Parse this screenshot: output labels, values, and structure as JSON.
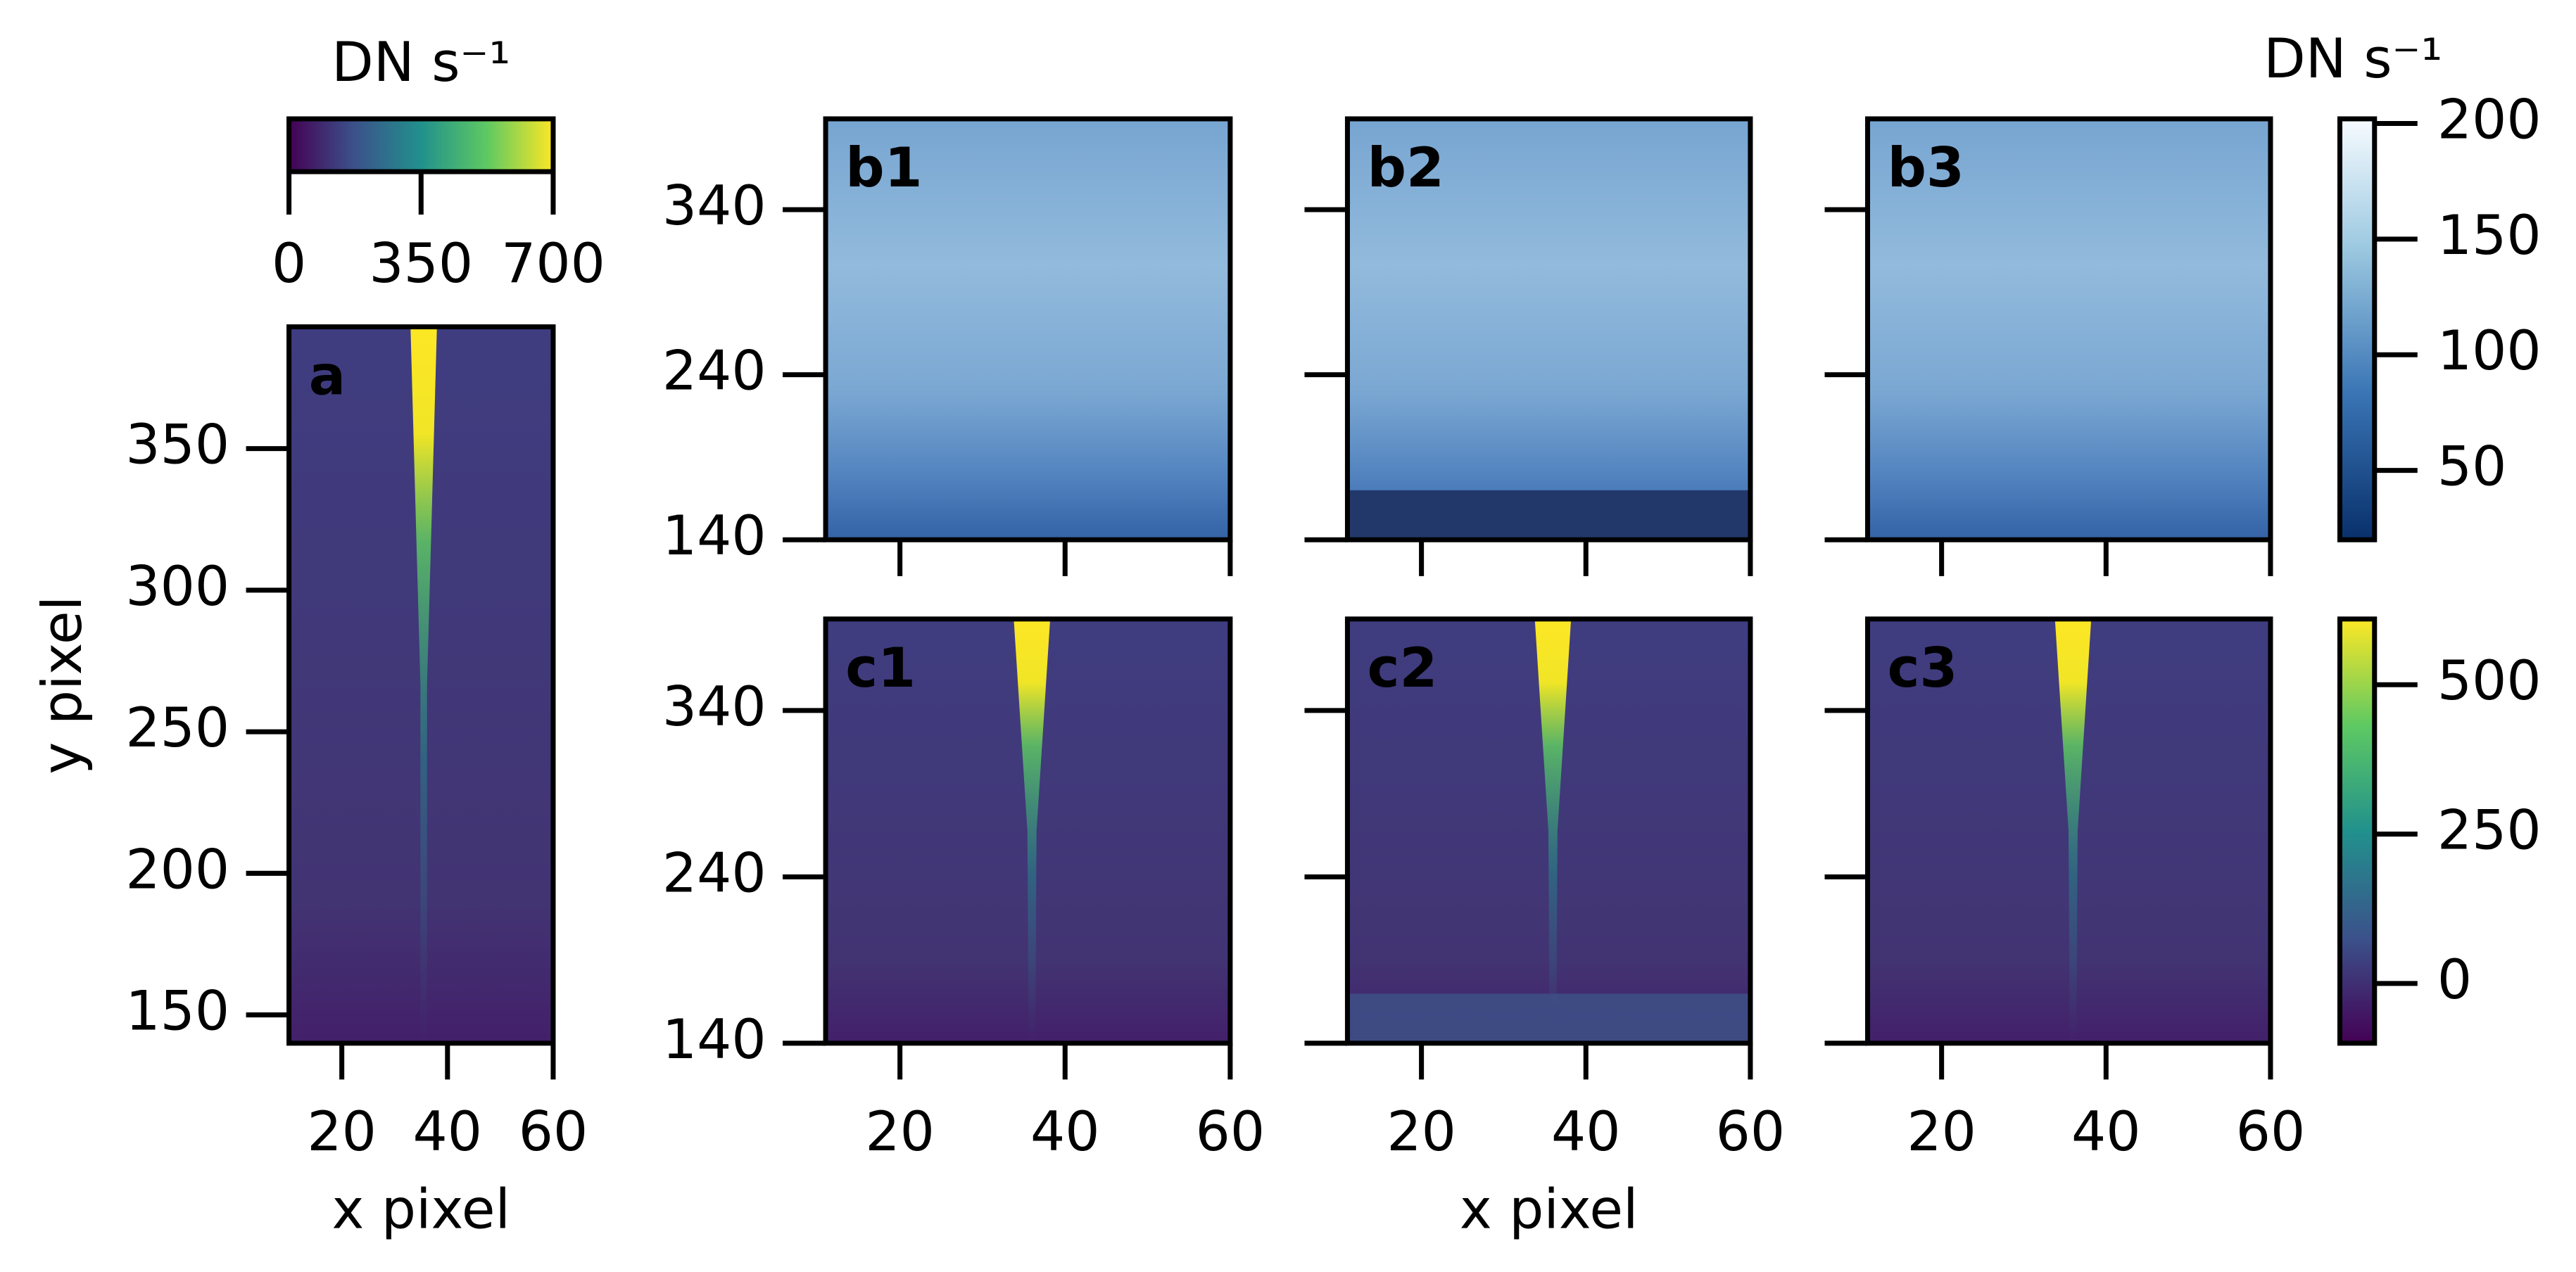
{
  "chart_data": [
    {
      "type": "image",
      "label": "a",
      "xlabel": "x pixel",
      "ylabel": "y pixel",
      "xlim": [
        10,
        60
      ],
      "ylim": [
        140,
        393
      ],
      "xticks": [
        20,
        40,
        60
      ],
      "yticks": [
        150,
        200,
        250,
        300,
        350
      ],
      "colormap": "viridis"
    },
    {
      "type": "colorbar",
      "label": "DN s⁻¹",
      "lim": [
        0,
        700
      ],
      "ticks": [
        0,
        350,
        700
      ],
      "colormap": "viridis",
      "orientation": "horizontal"
    },
    {
      "type": "image",
      "label": "b1",
      "xlim": [
        11,
        60
      ],
      "ylim": [
        140,
        395
      ],
      "xticks": [
        20,
        40,
        60
      ],
      "yticks": [
        140,
        240,
        340
      ],
      "colormap": "Blues_r"
    },
    {
      "type": "image",
      "label": "b2",
      "xlim": [
        11,
        60
      ],
      "ylim": [
        140,
        395
      ],
      "xticks": [
        20,
        40,
        60
      ],
      "yticks": [
        140,
        240,
        340
      ],
      "colormap": "Blues_r"
    },
    {
      "type": "image",
      "label": "b3",
      "xlim": [
        11,
        60
      ],
      "ylim": [
        140,
        395
      ],
      "xticks": [
        20,
        40,
        60
      ],
      "yticks": [
        140,
        240,
        340
      ],
      "colormap": "Blues_r"
    },
    {
      "type": "image",
      "label": "c1",
      "xlim": [
        11,
        60
      ],
      "ylim": [
        140,
        395
      ],
      "xticks": [
        20,
        40,
        60
      ],
      "yticks": [
        140,
        240,
        340
      ],
      "colormap": "viridis"
    },
    {
      "type": "image",
      "label": "c2",
      "xlabel": "x pixel",
      "xlim": [
        11,
        60
      ],
      "ylim": [
        140,
        395
      ],
      "xticks": [
        20,
        40,
        60
      ],
      "yticks": [
        140,
        240,
        340
      ],
      "colormap": "viridis"
    },
    {
      "type": "image",
      "label": "c3",
      "xlim": [
        11,
        60
      ],
      "ylim": [
        140,
        395
      ],
      "xticks": [
        20,
        40,
        60
      ],
      "yticks": [
        140,
        240,
        340
      ],
      "colormap": "viridis"
    },
    {
      "type": "colorbar",
      "label": "DN s⁻¹",
      "lim": [
        20,
        202
      ],
      "ticks": [
        50,
        100,
        150,
        200
      ],
      "colormap": "Blues_r",
      "orientation": "vertical"
    },
    {
      "type": "colorbar",
      "lim": [
        -100,
        610
      ],
      "ticks": [
        0,
        250,
        500
      ],
      "colormap": "viridis",
      "orientation": "vertical"
    }
  ]
}
